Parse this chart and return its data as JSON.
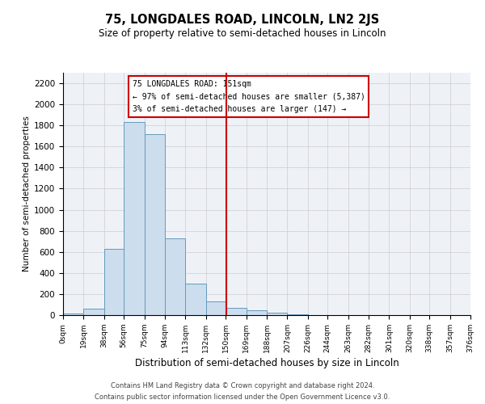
{
  "title": "75, LONGDALES ROAD, LINCOLN, LN2 2JS",
  "subtitle": "Size of property relative to semi-detached houses in Lincoln",
  "xlabel": "Distribution of semi-detached houses by size in Lincoln",
  "ylabel": "Number of semi-detached properties",
  "bin_labels": [
    "0sqm",
    "19sqm",
    "38sqm",
    "56sqm",
    "75sqm",
    "94sqm",
    "113sqm",
    "132sqm",
    "150sqm",
    "169sqm",
    "188sqm",
    "207sqm",
    "226sqm",
    "244sqm",
    "263sqm",
    "282sqm",
    "301sqm",
    "320sqm",
    "338sqm",
    "357sqm",
    "376sqm"
  ],
  "bin_edges": [
    0,
    19,
    38,
    56,
    75,
    94,
    113,
    132,
    150,
    169,
    188,
    207,
    226,
    244,
    263,
    282,
    301,
    320,
    338,
    357,
    376
  ],
  "bar_heights": [
    15,
    60,
    630,
    1830,
    1720,
    730,
    300,
    130,
    70,
    45,
    25,
    10,
    0,
    0,
    0,
    0,
    0,
    0,
    0,
    0
  ],
  "property_value": 151,
  "annotation_title": "75 LONGDALES ROAD: 151sqm",
  "annotation_line1": "← 97% of semi-detached houses are smaller (5,387)",
  "annotation_line2": "3% of semi-detached houses are larger (147) →",
  "bar_color": "#ccdded",
  "bar_edge_color": "#6699bb",
  "vline_color": "#cc0000",
  "annotation_box_edge": "#cc0000",
  "ylim": [
    0,
    2300
  ],
  "yticks": [
    0,
    200,
    400,
    600,
    800,
    1000,
    1200,
    1400,
    1600,
    1800,
    2000,
    2200
  ],
  "footer_line1": "Contains HM Land Registry data © Crown copyright and database right 2024.",
  "footer_line2": "Contains public sector information licensed under the Open Government Licence v3.0.",
  "bg_color": "#eef2f7",
  "grid_color": "#cccccc"
}
